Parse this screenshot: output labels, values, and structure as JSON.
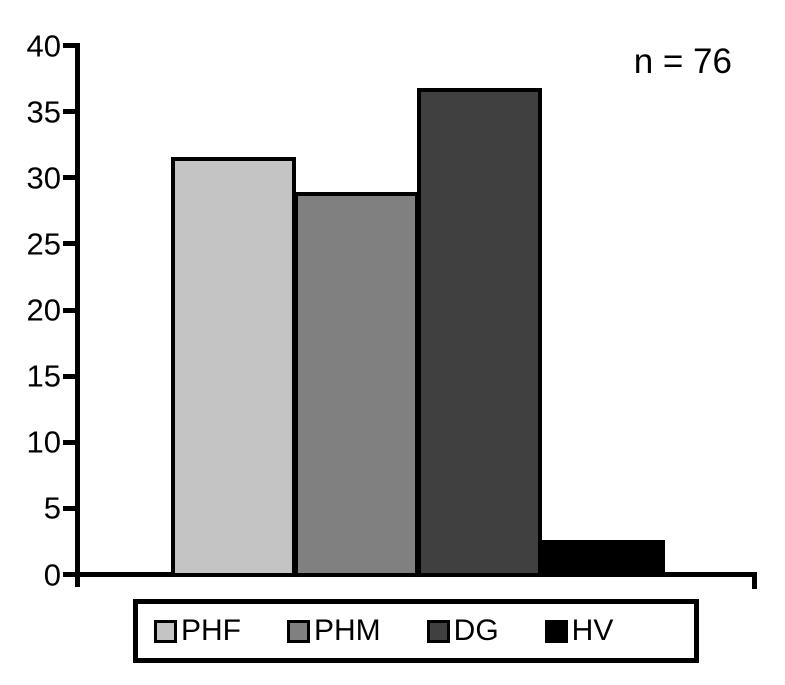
{
  "chart_data": {
    "type": "bar",
    "title": "",
    "xlabel": "",
    "ylabel": "",
    "categories": [
      "PHF",
      "PHM",
      "DG",
      "HV"
    ],
    "values": [
      31.6,
      28.9,
      36.8,
      2.6
    ],
    "annotation": "n = 76",
    "ylim": [
      0,
      40
    ],
    "yticks": [
      0,
      5,
      10,
      15,
      20,
      25,
      30,
      35,
      40
    ],
    "grid": false,
    "legend_position": "bottom-outside-boxed",
    "series_colors": [
      "#c4c4c4",
      "#808080",
      "#404040",
      "#000000"
    ],
    "bar_border_color": "#000000",
    "axis_color": "#000000",
    "background_color": "#ffffff",
    "legend": {
      "items": [
        {
          "label": "PHF",
          "color": "#c4c4c4"
        },
        {
          "label": "PHM",
          "color": "#808080"
        },
        {
          "label": "DG",
          "color": "#404040"
        },
        {
          "label": "HV",
          "color": "#000000"
        }
      ]
    }
  }
}
